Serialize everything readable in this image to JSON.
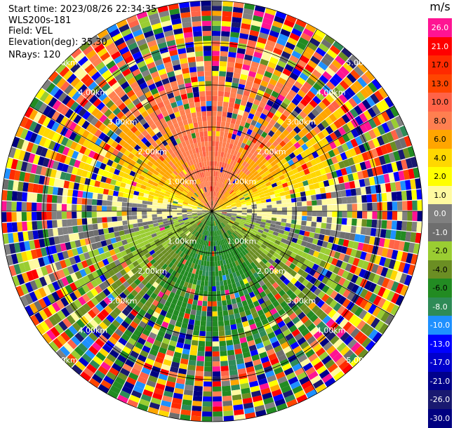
{
  "header": {
    "start_time": "Start time: 2023/08/26 22:34:35",
    "instrument": "WLS200s-181",
    "field": "Field: VEL",
    "elevation": "Elevation(deg): 35.30",
    "nrays": "NRays: 120"
  },
  "colorbar": {
    "unit": "m/s",
    "ticks": [
      "26.0",
      "21.0",
      "17.0",
      "13.0",
      "10.0",
      "8.0",
      "6.0",
      "4.0",
      "2.0",
      "1.0",
      "0.0",
      "-1.0",
      "-2.0",
      "-4.0",
      "-6.0",
      "-8.0",
      "-10.0",
      "-13.0",
      "-17.0",
      "-21.0",
      "-26.0",
      "-30.0"
    ],
    "colors": [
      "#ff1493",
      "#ff0000",
      "#ff2a00",
      "#ff4500",
      "#ff6347",
      "#ff7f50",
      "#ffa500",
      "#ffd700",
      "#ffff00",
      "#fffaa0",
      "#808080",
      "#6e6e6e",
      "#9acd32",
      "#6b8e23",
      "#228b22",
      "#2e8b57",
      "#1e90ff",
      "#0000ff",
      "#0000cd",
      "#00008b",
      "#191970",
      "#000080"
    ]
  },
  "chart_data": {
    "type": "heatmap",
    "projection": "polar-ppi",
    "field": "VEL",
    "units": "m/s",
    "nrays": 120,
    "range_rings_km": [
      1.0,
      2.0,
      3.0,
      4.0,
      5.0
    ],
    "range_ring_labels": [
      "1.00km",
      "2.00km",
      "3.00km",
      "4.00km",
      "5.00km"
    ],
    "spoke_angles_deg": [
      0,
      30,
      60,
      90,
      120,
      150,
      180,
      210,
      240,
      270,
      300,
      330
    ],
    "velocity_pattern": {
      "near_field_north_mps": [
        6.0,
        8.0
      ],
      "near_field_south_mps": [
        -8.0,
        -6.0
      ],
      "near_field_east_west_mps": [
        -1.0,
        1.0
      ],
      "far_field": "noise (all classes)"
    }
  }
}
